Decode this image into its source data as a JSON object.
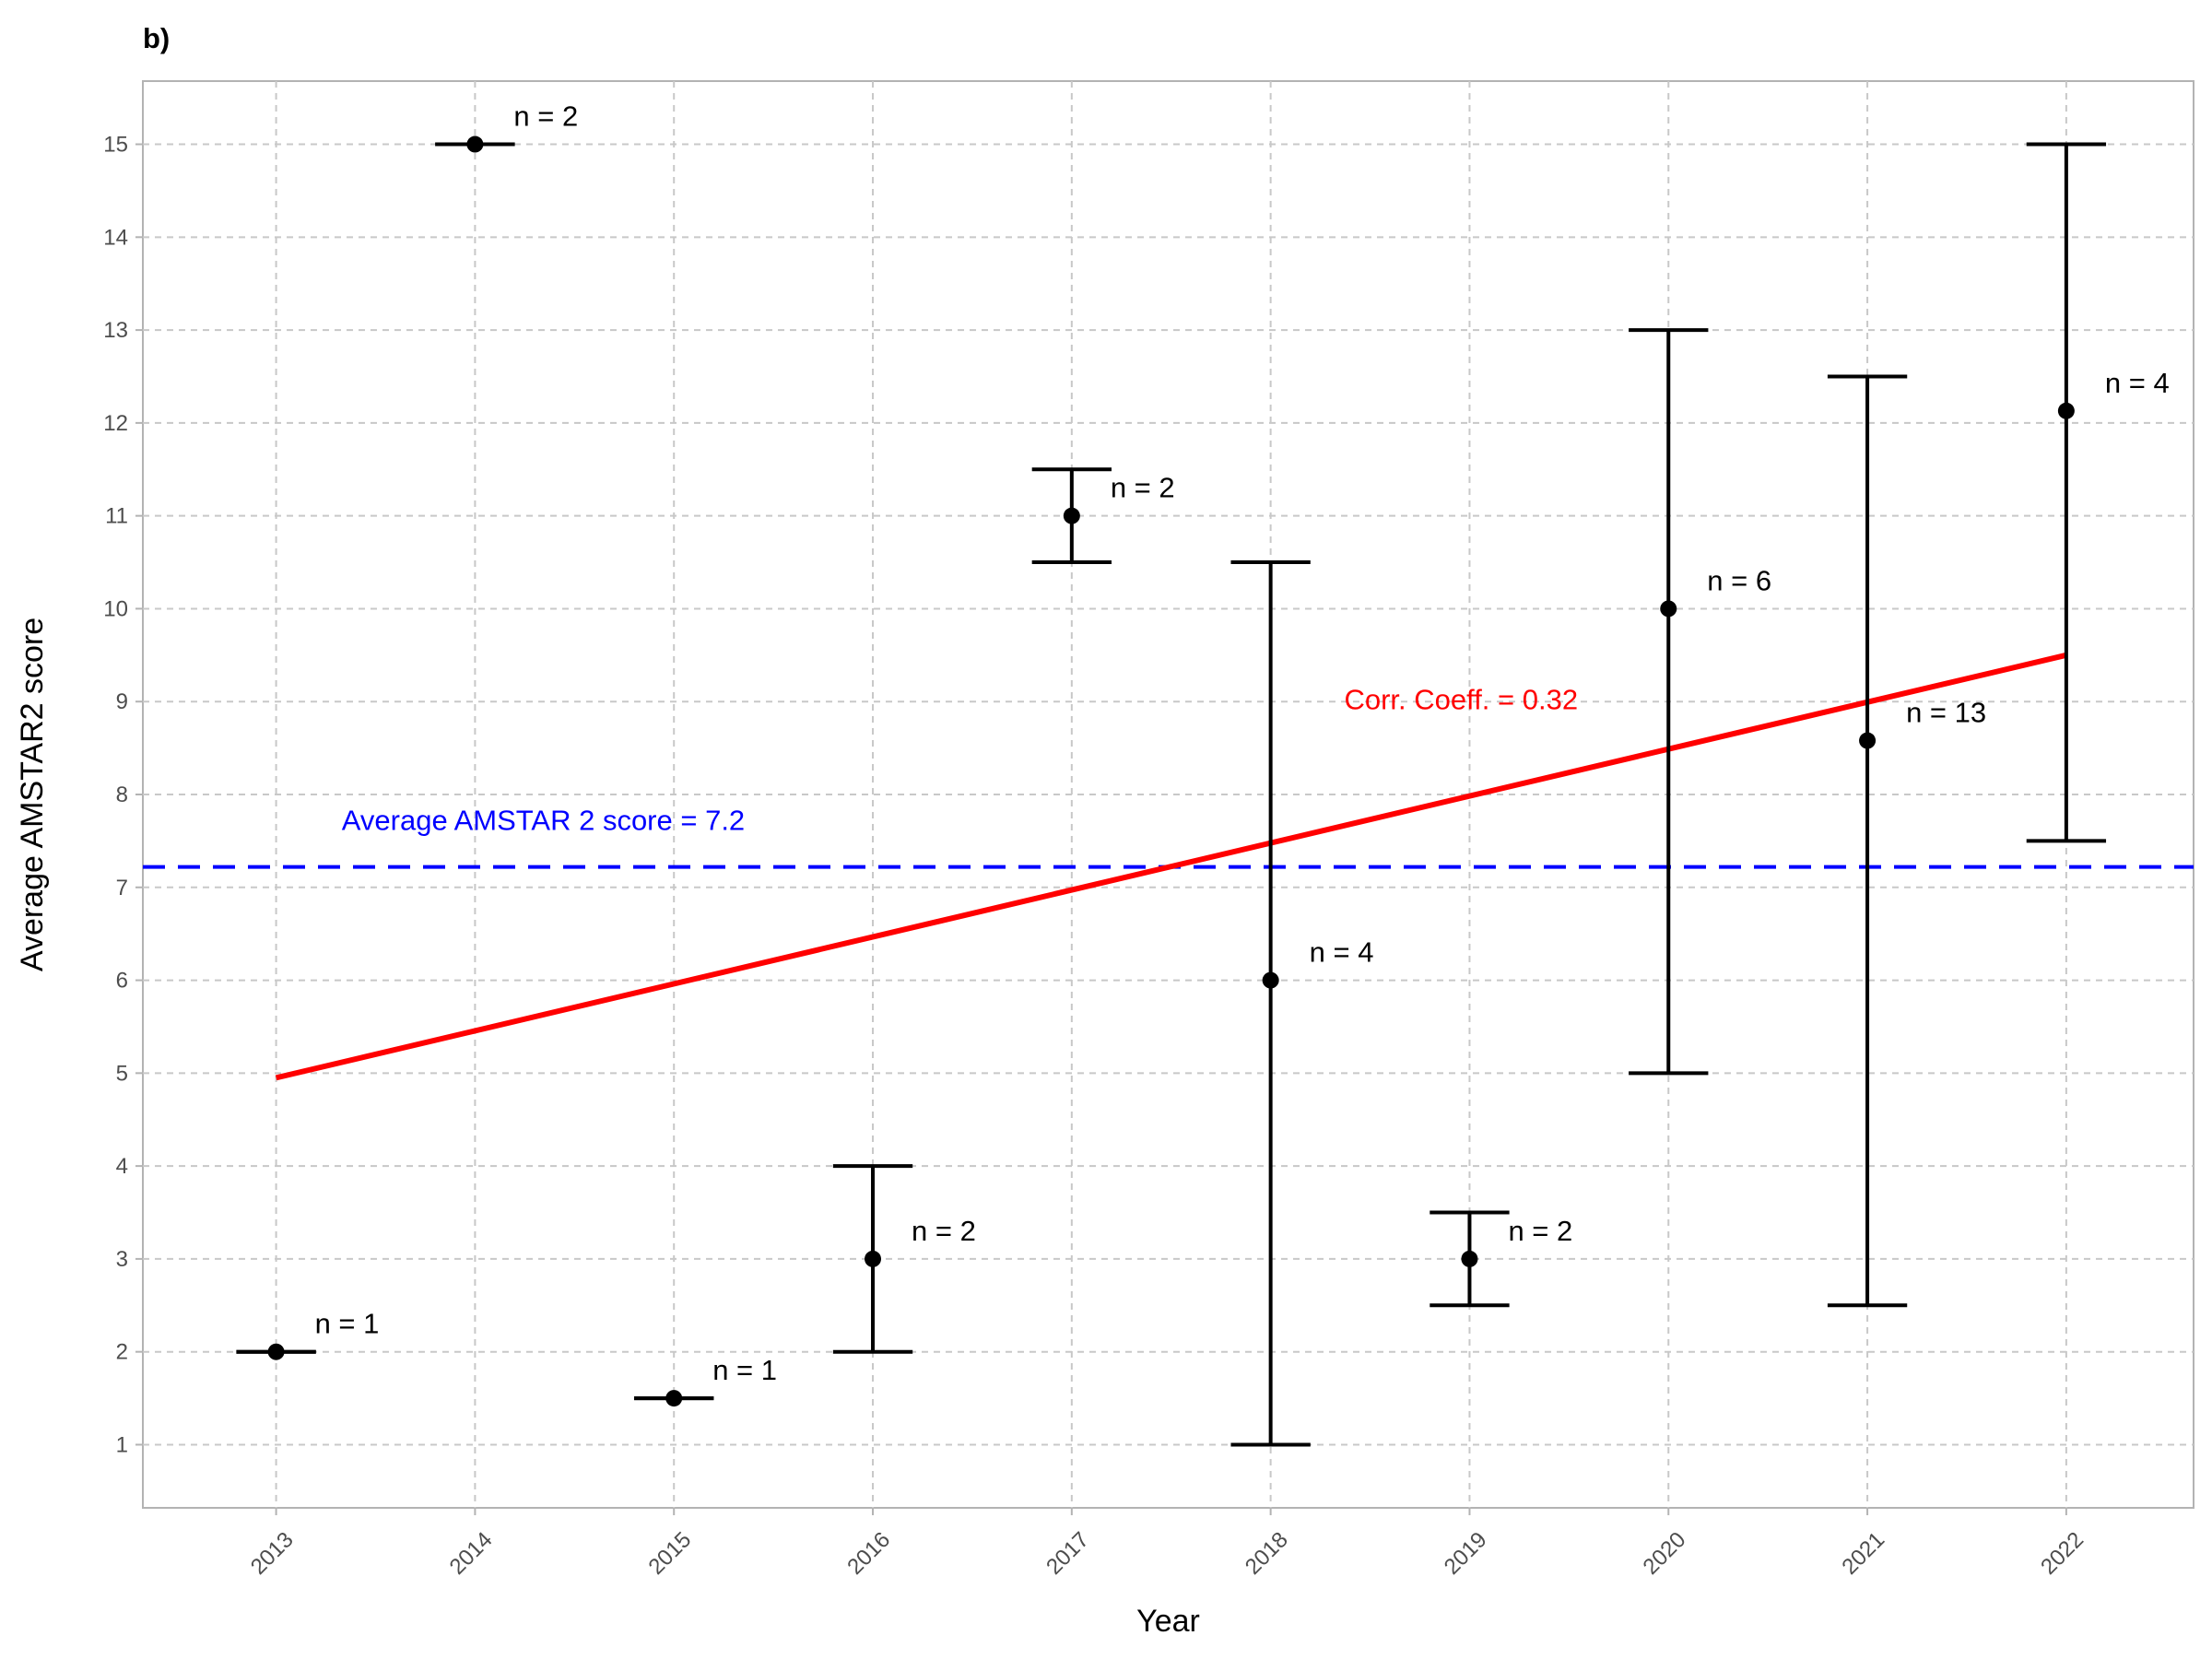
{
  "panel_label": "b)",
  "chart_data": {
    "type": "errorbar",
    "xlabel": "Year",
    "ylabel": "Average AMSTAR2 score",
    "x_range": [
      2012.33,
      2022.64
    ],
    "ylim": [
      0.32,
      15.68
    ],
    "grid": true,
    "x_ticks": [
      "2013",
      "2014",
      "2015",
      "2016",
      "2017",
      "2018",
      "2019",
      "2020",
      "2021",
      "2022"
    ],
    "y_ticks": [
      "1",
      "2",
      "3",
      "4",
      "5",
      "6",
      "7",
      "8",
      "9",
      "10",
      "11",
      "12",
      "13",
      "14",
      "15"
    ],
    "points": [
      {
        "x": 2013,
        "y": 2.0,
        "low": 2.0,
        "high": 2.0,
        "label": "n = 1"
      },
      {
        "x": 2014,
        "y": 15.0,
        "low": 15.0,
        "high": 15.0,
        "label": "n = 2"
      },
      {
        "x": 2015,
        "y": 1.5,
        "low": 1.5,
        "high": 1.5,
        "label": "n = 1"
      },
      {
        "x": 2016,
        "y": 3.0,
        "low": 2.0,
        "high": 4.0,
        "label": "n = 2"
      },
      {
        "x": 2017,
        "y": 11.0,
        "low": 10.5,
        "high": 11.5,
        "label": "n = 2"
      },
      {
        "x": 2018,
        "y": 6.0,
        "low": 1.0,
        "high": 10.5,
        "label": "n = 4"
      },
      {
        "x": 2019,
        "y": 3.0,
        "low": 2.5,
        "high": 3.5,
        "label": "n = 2"
      },
      {
        "x": 2020,
        "y": 10.0,
        "low": 5.0,
        "high": 13.0,
        "label": "n = 6"
      },
      {
        "x": 2021,
        "y": 8.58,
        "low": 2.5,
        "high": 12.5,
        "label": "n = 13"
      },
      {
        "x": 2022,
        "y": 12.13,
        "low": 7.5,
        "high": 15.0,
        "label": "n = 4"
      }
    ],
    "average_line": {
      "y": 7.22,
      "label": "Average AMSTAR 2 score = 7.2",
      "color": "#0000ff"
    },
    "trend_line": {
      "x": [
        2013,
        2022
      ],
      "y": [
        4.95,
        9.5
      ],
      "label": "Corr. Coeff. = 0.32",
      "color": "#ff0000"
    }
  }
}
